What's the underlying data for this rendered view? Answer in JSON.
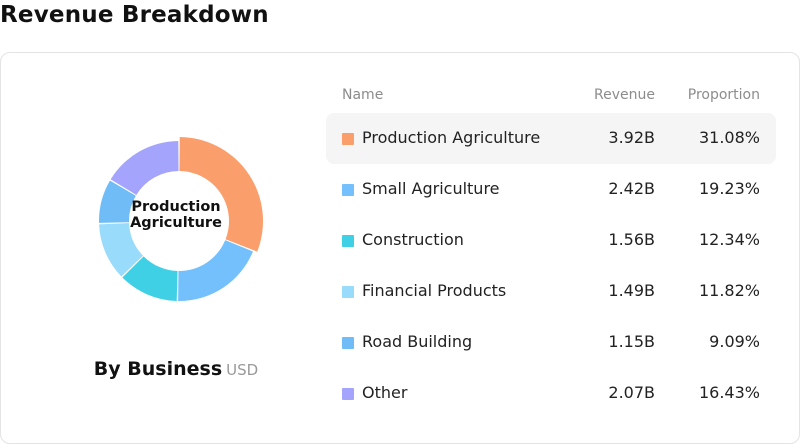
{
  "header": {
    "title": "Revenue Breakdown"
  },
  "donut": {
    "center_label": "Production Agriculture",
    "title": "By Business",
    "unit": "USD"
  },
  "table": {
    "columns": {
      "name": "Name",
      "revenue": "Revenue",
      "proportion": "Proportion"
    },
    "active_index": 0,
    "rows": [
      {
        "name": "Production Agriculture",
        "revenue": "3.92B",
        "proportion": "31.08%",
        "value": 31.08,
        "color": "#fa9f6b"
      },
      {
        "name": "Small Agriculture",
        "revenue": "2.42B",
        "proportion": "19.23%",
        "value": 19.23,
        "color": "#74c0fc"
      },
      {
        "name": "Construction",
        "revenue": "1.56B",
        "proportion": "12.34%",
        "value": 12.34,
        "color": "#40d0e6"
      },
      {
        "name": "Financial Products",
        "revenue": "1.49B",
        "proportion": "11.82%",
        "value": 11.82,
        "color": "#99dbfb"
      },
      {
        "name": "Road Building",
        "revenue": "1.15B",
        "proportion": "9.09%",
        "value": 9.09,
        "color": "#6fbcf7"
      },
      {
        "name": "Other",
        "revenue": "2.07B",
        "proportion": "16.43%",
        "value": 16.43,
        "color": "#a4a4fd"
      }
    ]
  }
}
